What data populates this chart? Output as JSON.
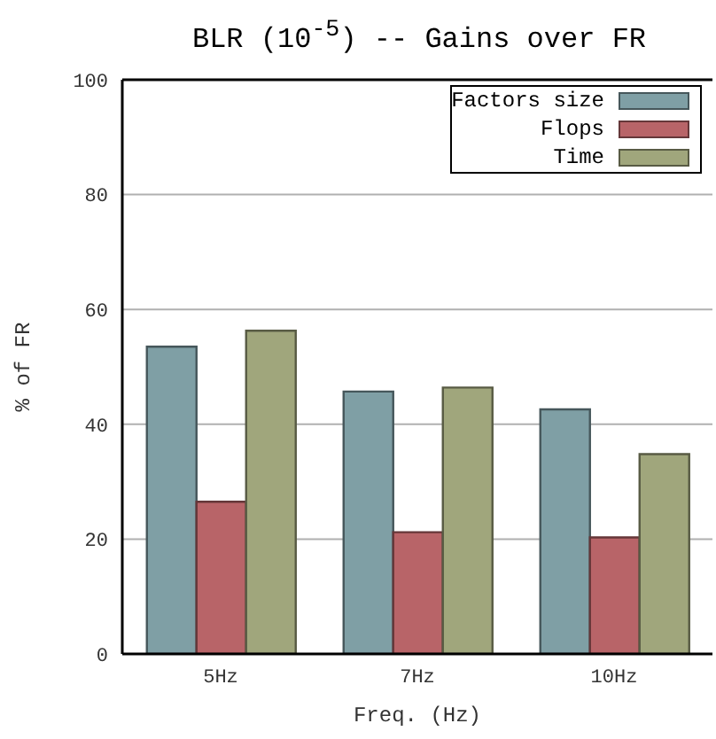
{
  "chart_data": {
    "type": "bar",
    "title": "BLR (10$^{-5}$) -- Gains over FR",
    "xlabel": "Freq. (Hz)",
    "ylabel": "% of FR",
    "categories": [
      "5Hz",
      "7Hz",
      "10Hz"
    ],
    "series": [
      {
        "name": "Factors size",
        "color": "#7f9fa5",
        "values": [
          53.5,
          45.7,
          42.6
        ]
      },
      {
        "name": "Flops",
        "color": "#b86468",
        "values": [
          26.5,
          21.2,
          20.3
        ]
      },
      {
        "name": "Time",
        "color": "#a0a67c",
        "values": [
          56.3,
          46.4,
          34.8
        ]
      }
    ],
    "ylim": [
      0,
      100
    ],
    "yticks": [
      0,
      20,
      40,
      60,
      80,
      100
    ],
    "grid": "y",
    "legend": "top right"
  }
}
